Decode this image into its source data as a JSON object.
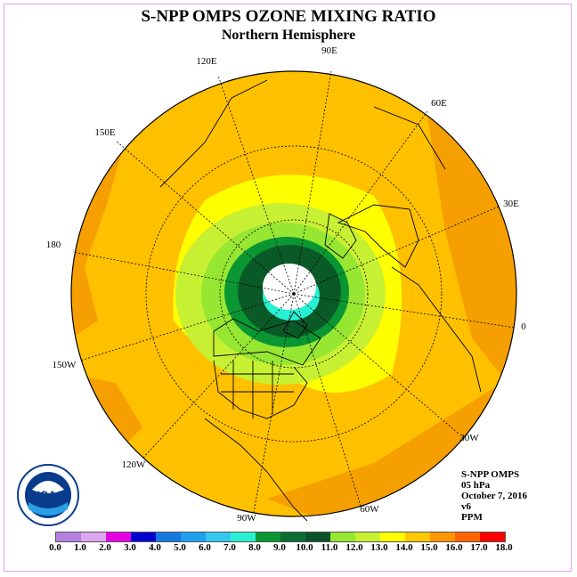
{
  "title": "S-NPP OMPS OZONE MIXING RATIO",
  "subtitle": "Northern Hemisphere",
  "longitude_labels": [
    "90E",
    "60E",
    "30E",
    "0",
    "30W",
    "60W",
    "90W",
    "120W",
    "150W",
    "180",
    "150E",
    "120E"
  ],
  "info": {
    "line1": "S-NPP OMPS",
    "line2": "05 hPa",
    "line3": "October 7, 2016",
    "line4": "v6",
    "line5": "PPM"
  },
  "logo_text": "NOAA",
  "colorbar": {
    "ticks": [
      "0.0",
      "1.0",
      "2.0",
      "3.0",
      "4.0",
      "5.0",
      "6.0",
      "7.0",
      "8.0",
      "9.0",
      "10.0",
      "11.0",
      "12.0",
      "13.0",
      "14.0",
      "15.0",
      "16.0",
      "17.0",
      "18.0"
    ],
    "colors": [
      "#b57fe0",
      "#dca6f0",
      "#e600e6",
      "#0000d0",
      "#1478e0",
      "#1ea0f0",
      "#32c8f0",
      "#28f0d2",
      "#0a9632",
      "#0a6e32",
      "#0a5028",
      "#96e632",
      "#c8f032",
      "#ffff00",
      "#ffc800",
      "#ff9600",
      "#ff6400",
      "#ff0000",
      "#8c5a3c"
    ]
  },
  "map_colors": {
    "orange_outer": "#f5a000",
    "orange": "#ffc000",
    "yellow": "#ffff00",
    "yellow_green": "#c8f032",
    "light_green": "#96e632",
    "green": "#0a9632",
    "dark_green": "#0a5a28",
    "cyan": "#28f0d2",
    "center": "#ffffff"
  }
}
